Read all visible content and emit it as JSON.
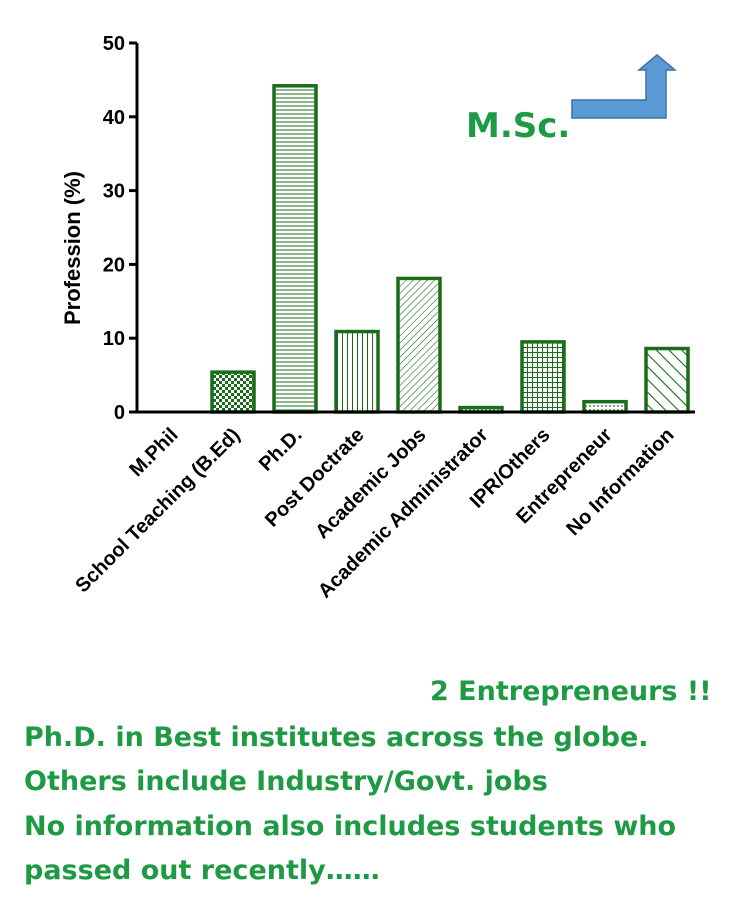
{
  "chart_data": {
    "type": "bar",
    "categories": [
      "M.Phil",
      "School Teaching (B.Ed)",
      "Ph.D.",
      "Post Doctrate",
      "Academic Jobs",
      "Academic Administrator",
      "IPR/Others",
      "Entrepreneur",
      "No Information"
    ],
    "values": [
      0,
      5.4,
      44.2,
      10.9,
      18.1,
      0.6,
      9.5,
      1.4,
      8.6
    ],
    "title": "",
    "xlabel": "",
    "ylabel": "Profession (%)",
    "ylim": [
      0,
      50
    ],
    "yticks": [
      "0",
      "10",
      "20",
      "30",
      "40",
      "50"
    ],
    "grid": false,
    "bar_color": "#1a6b1a",
    "patterns": [
      "none",
      "checker",
      "horizontal",
      "vertical",
      "diagonal",
      "dots",
      "grid",
      "dots",
      "backslash"
    ],
    "annotation": "M.Sc.",
    "annotation_color": "#1e9a45",
    "arrow_color": "#5b9bd5"
  },
  "notes": {
    "entrepreneurs": "2 Entrepreneurs !!",
    "line1": "Ph.D. in Best institutes across the globe.",
    "line2": "Others include Industry/Govt. jobs",
    "line3": "No information also includes students who",
    "line4": "passed out recently……"
  }
}
